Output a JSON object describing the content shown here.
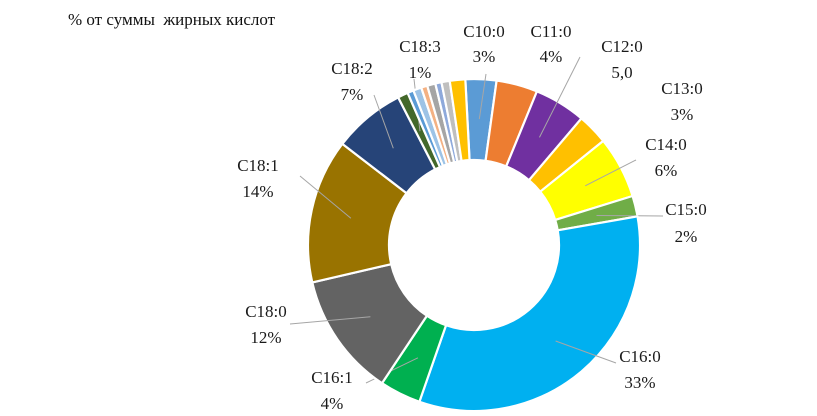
{
  "chart_data": {
    "type": "pie",
    "variant": "doughnut",
    "title": "% от суммы  жирных кислот",
    "legend": "none",
    "slices": [
      {
        "category": "C10:0",
        "value": 3,
        "label": "3%",
        "color": "#5B9BD5"
      },
      {
        "category": "C11:0",
        "value": 4,
        "label": "4%",
        "color": "#ED7D31"
      },
      {
        "category": "C12:0",
        "value": 5,
        "label": "5,0",
        "color": "#7030A0"
      },
      {
        "category": "C13:0",
        "value": 3,
        "label": "3%",
        "color": "#FFC000"
      },
      {
        "category": "C14:0",
        "value": 6,
        "label": "6%",
        "color": "#FFFF00"
      },
      {
        "category": "C15:0",
        "value": 2,
        "label": "2%",
        "color": "#70AD47"
      },
      {
        "category": "C16:0",
        "value": 33,
        "label": "33%",
        "color": "#00B0F0"
      },
      {
        "category": "C16:1",
        "value": 4,
        "label": "4%",
        "color": "#00B050"
      },
      {
        "category": "C18:0",
        "value": 12,
        "label": "12%",
        "color": "#636363"
      },
      {
        "category": "C18:1",
        "value": 14,
        "label": "14%",
        "color": "#997300"
      },
      {
        "category": "C18:2",
        "value": 7,
        "label": "7%",
        "color": "#264478"
      },
      {
        "category": "C18:3",
        "value": 1,
        "label": "1%",
        "color": "#43682B"
      },
      {
        "category": "",
        "value": 0.6,
        "label": "",
        "color": "#5B9BD5"
      },
      {
        "category": "",
        "value": 0.8,
        "label": "",
        "color": "#9DC3E6"
      },
      {
        "category": "",
        "value": 0.6,
        "label": "",
        "color": "#F4B183"
      },
      {
        "category": "",
        "value": 0.8,
        "label": "",
        "color": "#A5A5A5"
      },
      {
        "category": "",
        "value": 0.6,
        "label": "",
        "color": "#8EA9DB"
      },
      {
        "category": "",
        "value": 0.8,
        "label": "",
        "color": "#BFBFBF"
      },
      {
        "category": "",
        "value": 1.5,
        "label": "",
        "color": "#FFC000"
      }
    ]
  }
}
